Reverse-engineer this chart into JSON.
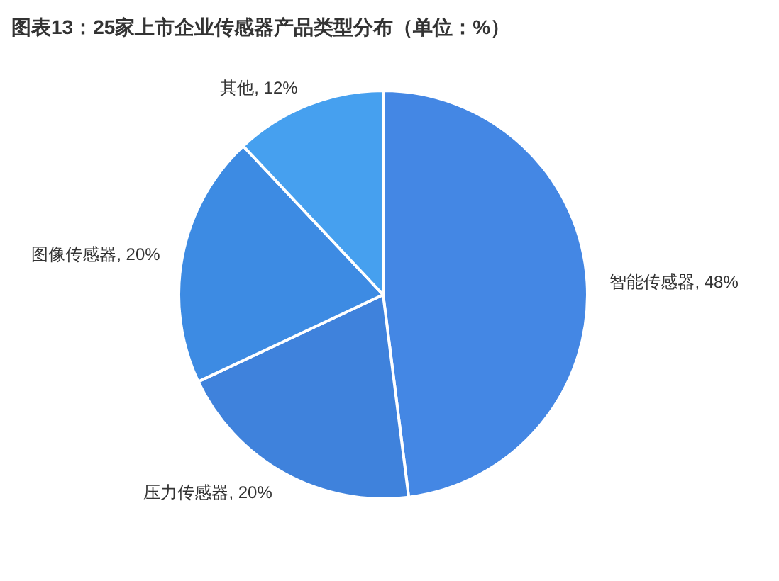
{
  "chart_data": {
    "type": "pie",
    "title": "图表13：25家上市企业传感器产品类型分布（单位：%）",
    "categories": [
      "智能传感器",
      "压力传感器",
      "图像传感器",
      "其他"
    ],
    "values": [
      48,
      20,
      20,
      12
    ],
    "value_labels": [
      "48%",
      "20%",
      "20%",
      "12%"
    ],
    "colors": [
      "#4487e4",
      "#3f82dc",
      "#3d8be3",
      "#46a0ef"
    ]
  }
}
